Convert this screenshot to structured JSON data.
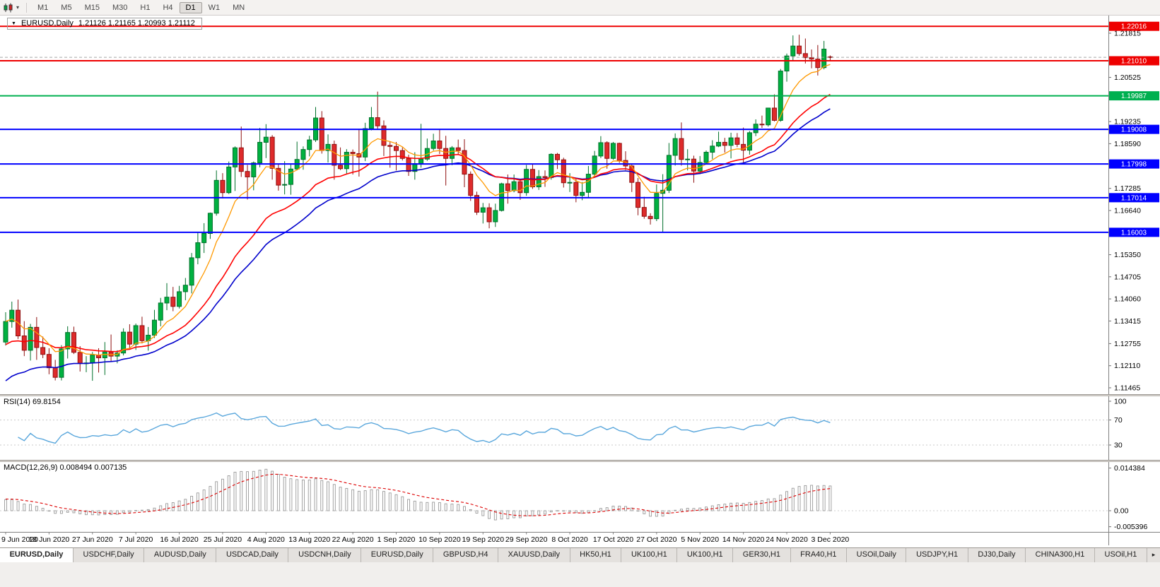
{
  "toolbar": {
    "timeframes": [
      "M1",
      "M5",
      "M15",
      "M30",
      "H1",
      "H4",
      "D1",
      "W1",
      "MN"
    ],
    "active": "D1"
  },
  "icons": {
    "title_caret": "▼",
    "toolbar_caret": "▾",
    "tab_scroll_right": "▸"
  },
  "chart": {
    "title": "EURUSD,Daily",
    "ohlc_text": "1.21126 1.21165 1.20993 1.21112"
  },
  "price_scale": {
    "ticks": [
      "1.21815",
      "1.20525",
      "1.19235",
      "1.18590",
      "1.17285",
      "1.16640",
      "1.15350",
      "1.14705",
      "1.14060",
      "1.13415",
      "1.12755",
      "1.12110",
      "1.11465"
    ]
  },
  "rsi": {
    "label": "RSI(14)",
    "value": "69.8154",
    "levels": [
      "100",
      "70",
      "30"
    ]
  },
  "macd": {
    "label": "MACD(12,26,9)",
    "values": "0.008494 0.007135",
    "scale": [
      "0.014384",
      "0.00",
      "-0.005396"
    ]
  },
  "tabs": {
    "active_index": 0,
    "items": [
      "EURUSD,Daily",
      "USDCHF,Daily",
      "AUDUSD,Daily",
      "USDCAD,Daily",
      "USDCNH,Daily",
      "EURUSD,Daily",
      "GBPUSD,H4",
      "XAUUSD,Daily",
      "HK50,H1",
      "UK100,H1",
      "UK100,H1",
      "GER30,H1",
      "FRA40,H1",
      "USOil,Daily",
      "USDJPY,H1",
      "DJ30,Daily",
      "CHINA300,H1",
      "USOil,H1"
    ]
  },
  "colors": {
    "candle_up": "#00b140",
    "candle_up_border": "#00702a",
    "candle_down": "#de2b2b",
    "candle_down_border": "#8f1010",
    "ma_fast": "#ff9900",
    "ma_mid": "#ff0000",
    "ma_slow": "#0000cc",
    "rsi_line": "#5aa7dc",
    "macd_signal": "#dd0000",
    "macd_hist": "#9a9a9a",
    "bid_line": "#a8a8a8"
  },
  "chart_data": {
    "type": "candlestick",
    "symbol": "EURUSD",
    "period": "Daily",
    "bid": 1.21112,
    "ylim": [
      1.1128,
      1.2233
    ],
    "x_label_every_bars": 7,
    "x_labels": [
      "9 Jun 2020",
      "18 Jun 2020",
      "27 Jun 2020",
      "7 Jul 2020",
      "16 Jul 2020",
      "25 Jul 2020",
      "4 Aug 2020",
      "13 Aug 2020",
      "22 Aug 2020",
      "1 Sep 2020",
      "10 Sep 2020",
      "19 Sep 2020",
      "29 Sep 2020",
      "8 Oct 2020",
      "17 Oct 2020",
      "27 Oct 2020",
      "5 Nov 2020",
      "14 Nov 2020",
      "24 Nov 2020",
      "3 Dec 2020"
    ],
    "hlines": [
      {
        "price": 1.22016,
        "label": "1.22016",
        "color": "#ee0000"
      },
      {
        "price": 1.2101,
        "label": "1.21010",
        "color": "#ee0000"
      },
      {
        "price": 1.19987,
        "label": "1.19987",
        "color": "#00b050"
      },
      {
        "price": 1.19008,
        "label": "1.19008",
        "color": "#0000ff"
      },
      {
        "price": 1.17998,
        "label": "1.17998",
        "color": "#0000ff"
      },
      {
        "price": 1.17014,
        "label": "1.17014",
        "color": "#0000ff"
      },
      {
        "price": 1.16003,
        "label": "1.16003",
        "color": "#0000ff"
      }
    ],
    "indicators": {
      "rsi": {
        "period": 14,
        "current": 69.8154,
        "levels": [
          100,
          70,
          30
        ]
      },
      "macd": {
        "fast": 12,
        "slow": 26,
        "signal": 9,
        "current_macd": 0.008494,
        "current_signal": 0.007135,
        "scale_max": 0.014384,
        "scale_min": -0.005396
      }
    },
    "ohlc": [
      [
        1.128,
        1.1367,
        1.127,
        1.134
      ],
      [
        1.134,
        1.1398,
        1.1322,
        1.1373
      ],
      [
        1.1373,
        1.1404,
        1.1289,
        1.1298
      ],
      [
        1.1298,
        1.1341,
        1.1239,
        1.1256
      ],
      [
        1.1256,
        1.1333,
        1.1226,
        1.1323
      ],
      [
        1.1323,
        1.1353,
        1.1228,
        1.1264
      ],
      [
        1.1264,
        1.1296,
        1.1233,
        1.1244
      ],
      [
        1.1244,
        1.1262,
        1.1186,
        1.1205
      ],
      [
        1.1205,
        1.1228,
        1.1168,
        1.1177
      ],
      [
        1.1177,
        1.1271,
        1.1168,
        1.126
      ],
      [
        1.126,
        1.1326,
        1.1232,
        1.1308
      ],
      [
        1.1308,
        1.1325,
        1.1245,
        1.125
      ],
      [
        1.125,
        1.1268,
        1.1194,
        1.1218
      ],
      [
        1.1218,
        1.1239,
        1.1192,
        1.1219
      ],
      [
        1.1219,
        1.1251,
        1.1167,
        1.1242
      ],
      [
        1.1242,
        1.1262,
        1.1191,
        1.1234
      ],
      [
        1.1234,
        1.128,
        1.1184,
        1.1251
      ],
      [
        1.1251,
        1.1302,
        1.1223,
        1.1239
      ],
      [
        1.1239,
        1.1256,
        1.1218,
        1.1248
      ],
      [
        1.1248,
        1.132,
        1.1241,
        1.1309
      ],
      [
        1.1309,
        1.1332,
        1.126,
        1.1274
      ],
      [
        1.1274,
        1.1334,
        1.1257,
        1.1328
      ],
      [
        1.1328,
        1.1354,
        1.1276,
        1.1284
      ],
      [
        1.1284,
        1.1324,
        1.1255,
        1.13
      ],
      [
        1.13,
        1.1374,
        1.1292,
        1.1344
      ],
      [
        1.1344,
        1.1409,
        1.1326,
        1.1394
      ],
      [
        1.1394,
        1.1452,
        1.1373,
        1.1411
      ],
      [
        1.1411,
        1.1441,
        1.137,
        1.1384
      ],
      [
        1.1384,
        1.1444,
        1.1378,
        1.1427
      ],
      [
        1.1427,
        1.1467,
        1.1402,
        1.1446
      ],
      [
        1.1446,
        1.154,
        1.1422,
        1.1526
      ],
      [
        1.1526,
        1.1601,
        1.1507,
        1.157
      ],
      [
        1.157,
        1.1627,
        1.154,
        1.1597
      ],
      [
        1.1597,
        1.1658,
        1.1581,
        1.1656
      ],
      [
        1.1656,
        1.1781,
        1.1649,
        1.1752
      ],
      [
        1.1752,
        1.1773,
        1.1699,
        1.1716
      ],
      [
        1.1716,
        1.1807,
        1.1712,
        1.1791
      ],
      [
        1.1791,
        1.1851,
        1.1721,
        1.1847
      ],
      [
        1.1847,
        1.1909,
        1.1762,
        1.1778
      ],
      [
        1.1778,
        1.1797,
        1.1696,
        1.1762
      ],
      [
        1.1762,
        1.1807,
        1.1723,
        1.1803
      ],
      [
        1.1803,
        1.1905,
        1.179,
        1.1863
      ],
      [
        1.1863,
        1.1916,
        1.1817,
        1.1878
      ],
      [
        1.1878,
        1.1884,
        1.1754,
        1.1787
      ],
      [
        1.1787,
        1.1798,
        1.1722,
        1.1738
      ],
      [
        1.1738,
        1.1808,
        1.1711,
        1.174
      ],
      [
        1.174,
        1.1798,
        1.171,
        1.1785
      ],
      [
        1.1785,
        1.1865,
        1.1782,
        1.1813
      ],
      [
        1.1813,
        1.1851,
        1.1783,
        1.1842
      ],
      [
        1.1842,
        1.1882,
        1.1822,
        1.187
      ],
      [
        1.187,
        1.1966,
        1.1864,
        1.1934
      ],
      [
        1.1934,
        1.1954,
        1.183,
        1.1839
      ],
      [
        1.1839,
        1.1886,
        1.1804,
        1.1857
      ],
      [
        1.1857,
        1.1868,
        1.1754,
        1.1796
      ],
      [
        1.1796,
        1.1848,
        1.1782,
        1.1786
      ],
      [
        1.1786,
        1.1843,
        1.1772,
        1.1834
      ],
      [
        1.1834,
        1.1842,
        1.1769,
        1.183
      ],
      [
        1.183,
        1.19,
        1.1763,
        1.182
      ],
      [
        1.182,
        1.192,
        1.1808,
        1.1903
      ],
      [
        1.1903,
        1.1966,
        1.1898,
        1.1935
      ],
      [
        1.1935,
        1.2011,
        1.1899,
        1.1911
      ],
      [
        1.1911,
        1.1927,
        1.1823,
        1.1854
      ],
      [
        1.1854,
        1.1865,
        1.1789,
        1.1851
      ],
      [
        1.1851,
        1.1864,
        1.1781,
        1.1839
      ],
      [
        1.1839,
        1.1848,
        1.181,
        1.1816
      ],
      [
        1.1816,
        1.1827,
        1.1765,
        1.1778
      ],
      [
        1.1778,
        1.1834,
        1.1754,
        1.1801
      ],
      [
        1.1801,
        1.1917,
        1.1789,
        1.1814
      ],
      [
        1.1814,
        1.1874,
        1.1809,
        1.1845
      ],
      [
        1.1845,
        1.1888,
        1.1839,
        1.1867
      ],
      [
        1.1867,
        1.19,
        1.1829,
        1.1845
      ],
      [
        1.1845,
        1.1882,
        1.1737,
        1.1816
      ],
      [
        1.1816,
        1.1852,
        1.1796,
        1.1847
      ],
      [
        1.1847,
        1.1871,
        1.1827,
        1.1839
      ],
      [
        1.1839,
        1.1872,
        1.1732,
        1.177
      ],
      [
        1.177,
        1.1778,
        1.1692,
        1.1708
      ],
      [
        1.1708,
        1.1719,
        1.1651,
        1.1659
      ],
      [
        1.1659,
        1.1686,
        1.1626,
        1.1672
      ],
      [
        1.1672,
        1.1685,
        1.1612,
        1.1631
      ],
      [
        1.1631,
        1.1684,
        1.1616,
        1.1664
      ],
      [
        1.1664,
        1.1745,
        1.1661,
        1.1742
      ],
      [
        1.1742,
        1.1769,
        1.1684,
        1.1722
      ],
      [
        1.1722,
        1.1769,
        1.1717,
        1.1748
      ],
      [
        1.1748,
        1.1752,
        1.1695,
        1.1716
      ],
      [
        1.1716,
        1.1797,
        1.1707,
        1.1784
      ],
      [
        1.1784,
        1.1799,
        1.1727,
        1.1733
      ],
      [
        1.1733,
        1.1782,
        1.1724,
        1.1763
      ],
      [
        1.1763,
        1.1781,
        1.1733,
        1.176
      ],
      [
        1.176,
        1.1831,
        1.1754,
        1.1828
      ],
      [
        1.1828,
        1.1832,
        1.1785,
        1.1812
      ],
      [
        1.1812,
        1.1818,
        1.1731,
        1.1745
      ],
      [
        1.1745,
        1.1773,
        1.1718,
        1.1746
      ],
      [
        1.1746,
        1.1758,
        1.1688,
        1.1708
      ],
      [
        1.1708,
        1.1747,
        1.1694,
        1.1717
      ],
      [
        1.1717,
        1.1794,
        1.1703,
        1.177
      ],
      [
        1.177,
        1.1838,
        1.176,
        1.1823
      ],
      [
        1.1823,
        1.1881,
        1.1817,
        1.1862
      ],
      [
        1.1862,
        1.1866,
        1.1786,
        1.1816
      ],
      [
        1.1816,
        1.1864,
        1.1812,
        1.186
      ],
      [
        1.186,
        1.1862,
        1.1803,
        1.181
      ],
      [
        1.181,
        1.1837,
        1.1782,
        1.1794
      ],
      [
        1.1794,
        1.18,
        1.1718,
        1.1746
      ],
      [
        1.1746,
        1.1759,
        1.165,
        1.1673
      ],
      [
        1.1673,
        1.1704,
        1.164,
        1.1647
      ],
      [
        1.1647,
        1.1656,
        1.1623,
        1.164
      ],
      [
        1.164,
        1.174,
        1.1633,
        1.1714
      ],
      [
        1.1714,
        1.177,
        1.1602,
        1.1723
      ],
      [
        1.1723,
        1.1861,
        1.1715,
        1.1825
      ],
      [
        1.1825,
        1.1889,
        1.1795,
        1.1874
      ],
      [
        1.1874,
        1.1921,
        1.1795,
        1.1813
      ],
      [
        1.1813,
        1.1843,
        1.1781,
        1.1814
      ],
      [
        1.1814,
        1.1824,
        1.1745,
        1.1779
      ],
      [
        1.1779,
        1.1823,
        1.177,
        1.1804
      ],
      [
        1.1804,
        1.1839,
        1.1799,
        1.1834
      ],
      [
        1.1834,
        1.1869,
        1.1814,
        1.1852
      ],
      [
        1.1852,
        1.1894,
        1.1849,
        1.1863
      ],
      [
        1.1863,
        1.1876,
        1.1833,
        1.1854
      ],
      [
        1.1854,
        1.1891,
        1.1816,
        1.1876
      ],
      [
        1.1876,
        1.189,
        1.1849,
        1.1857
      ],
      [
        1.1857,
        1.1906,
        1.18,
        1.184
      ],
      [
        1.184,
        1.1896,
        1.1827,
        1.1891
      ],
      [
        1.1891,
        1.193,
        1.1881,
        1.1916
      ],
      [
        1.1916,
        1.1941,
        1.1905,
        1.1914
      ],
      [
        1.1914,
        1.1964,
        1.1909,
        1.1963
      ],
      [
        1.1963,
        1.2003,
        1.1924,
        1.1927
      ],
      [
        1.1927,
        1.2077,
        1.1923,
        1.2071
      ],
      [
        1.2071,
        1.2122,
        1.204,
        1.2115
      ],
      [
        1.2115,
        1.2175,
        1.2099,
        1.2144
      ],
      [
        1.2144,
        1.2177,
        1.2116,
        1.2122
      ],
      [
        1.2122,
        1.2166,
        1.2093,
        1.211
      ],
      [
        1.211,
        1.2134,
        1.2079,
        1.2106
      ],
      [
        1.2106,
        1.2147,
        1.2058,
        1.2081
      ],
      [
        1.2081,
        1.2159,
        1.2076,
        1.2135
      ],
      [
        1.21126,
        1.21165,
        1.20993,
        1.21112
      ]
    ]
  }
}
